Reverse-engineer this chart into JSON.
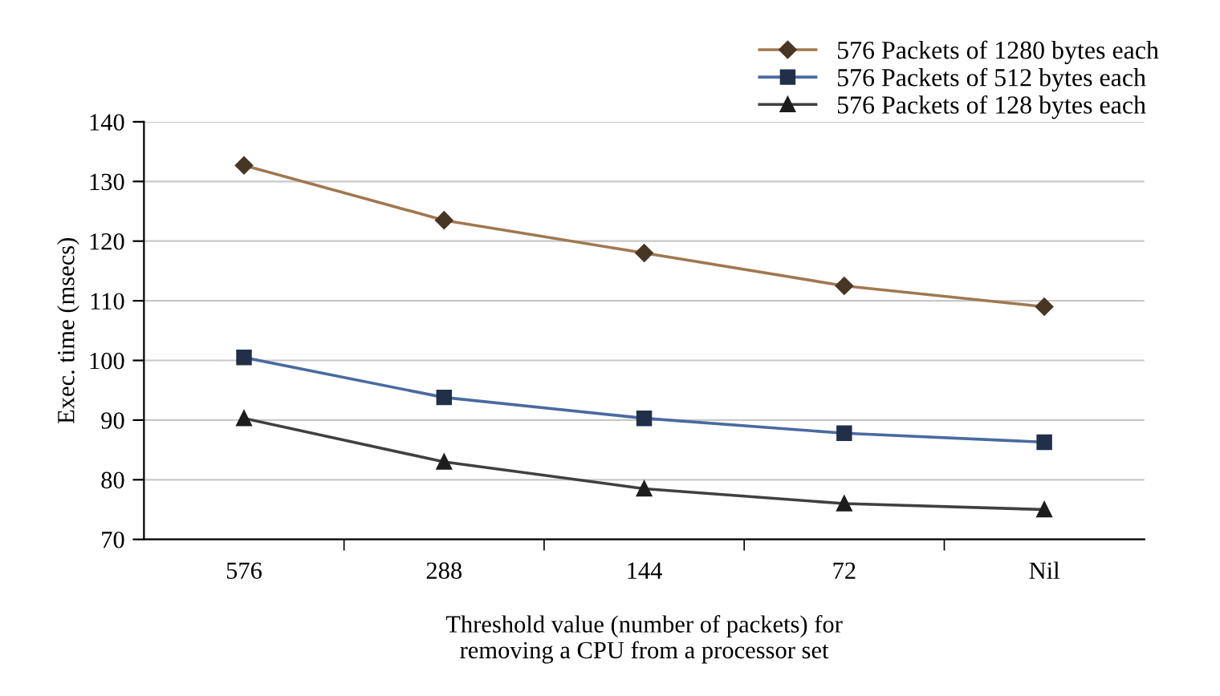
{
  "chart_data": {
    "type": "line",
    "xlabel": "Threshold value (number of packets) for\nremoving a CPU from a processor set",
    "ylabel": "Exec. time (msecs)",
    "categories": [
      "576",
      "288",
      "144",
      "72",
      "Nil"
    ],
    "series": [
      {
        "name": "576 Packets of 1280 bytes each",
        "color": "#a07850",
        "marker": "diamond",
        "values": [
          132.7,
          123.5,
          118,
          112.5,
          109
        ]
      },
      {
        "name": "576 Packets of 512 bytes each",
        "color": "#4a6aa0",
        "marker": "square",
        "values": [
          100.5,
          93.8,
          90.3,
          87.8,
          86.3
        ]
      },
      {
        "name": "576 Packets of 128 bytes each",
        "color": "#404040",
        "marker": "triangle",
        "values": [
          90.3,
          83,
          78.5,
          76,
          75
        ]
      }
    ],
    "ylim": [
      70,
      140
    ],
    "yticks": [
      70,
      80,
      90,
      100,
      110,
      120,
      130,
      140
    ],
    "grid": "y",
    "legend": "top right",
    "line_style": "solid"
  }
}
